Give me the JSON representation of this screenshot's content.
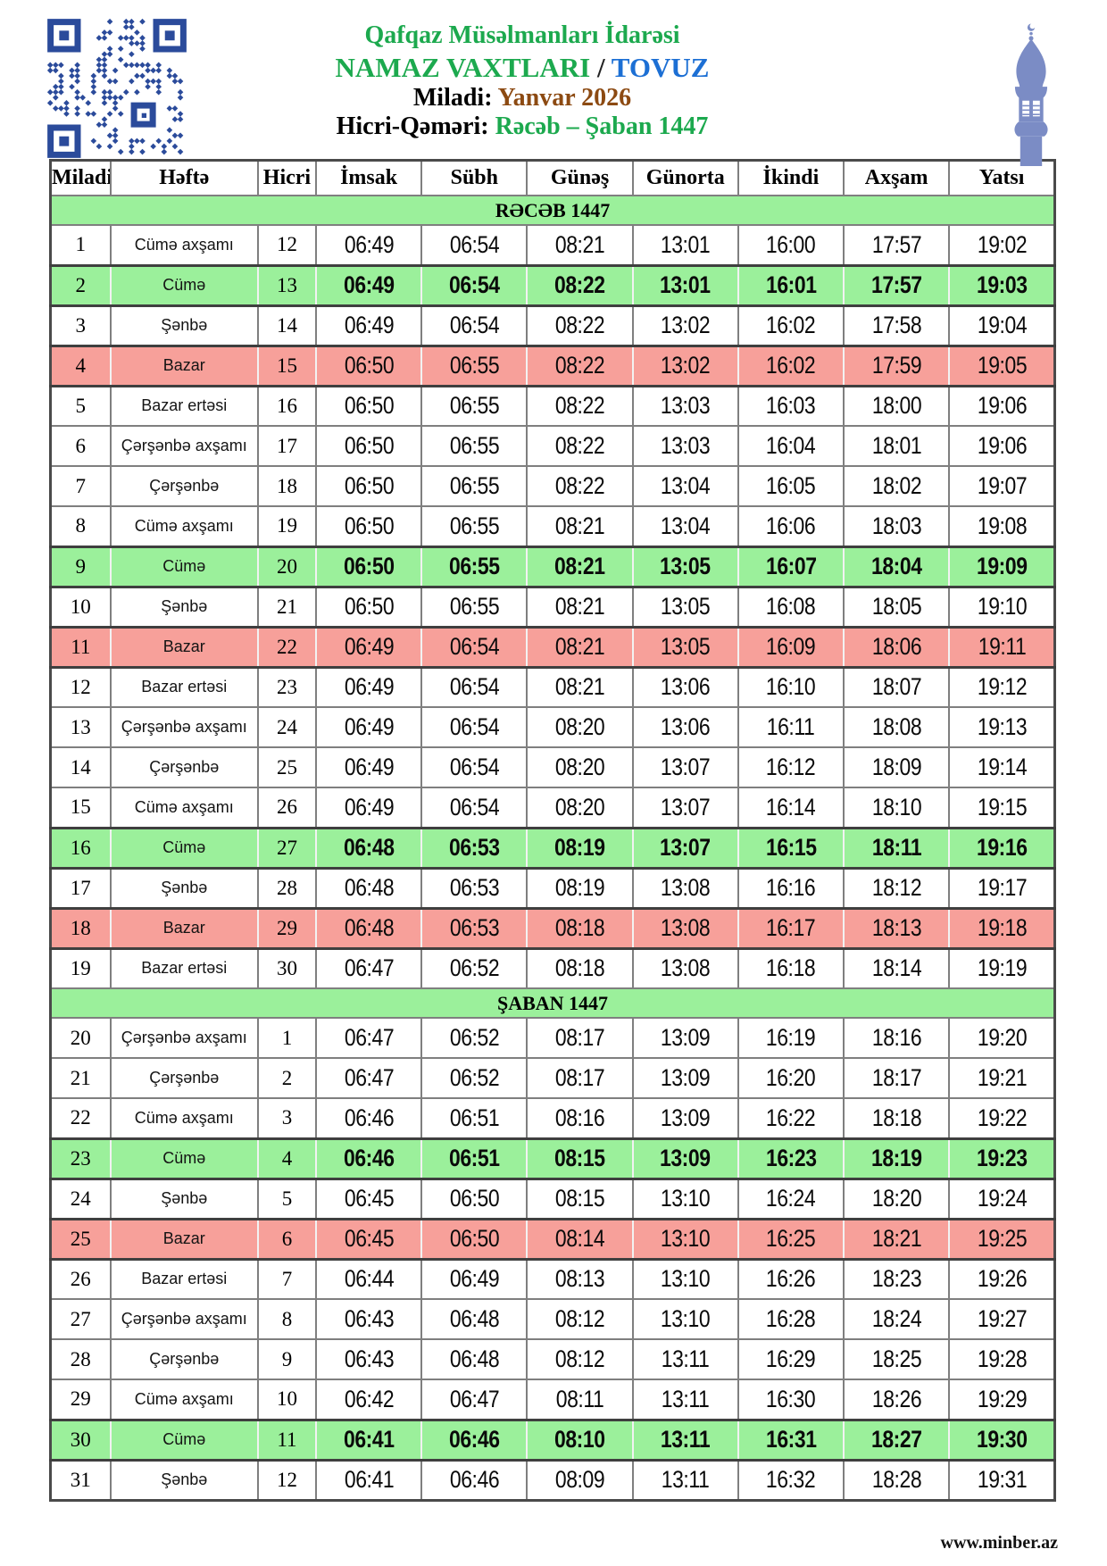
{
  "header": {
    "org": "Qafqaz Müsəlmanları İdarəsi",
    "title": "NAMAZ VAXTLARI",
    "title_sep": " / ",
    "city": "TOVUZ",
    "miladi_label": "Miladi: ",
    "miladi_value": "Yanvar 2026",
    "hicri_label": "Hicri-Qəməri: ",
    "hicri_value": "Rəcəb – Şaban 1447"
  },
  "table": {
    "columns": [
      "Miladi",
      "Həftə",
      "Hicri",
      "İmsak",
      "Sübh",
      "Günəş",
      "Günorta",
      "İkindi",
      "Axşam",
      "Yatsı"
    ],
    "sections": [
      {
        "title": "RƏCƏB 1447",
        "rows": [
          {
            "miladi": "1",
            "hefte": "Cümə axşamı",
            "hicri": "12",
            "times": [
              "06:49",
              "06:54",
              "08:21",
              "13:01",
              "16:00",
              "17:57",
              "19:02"
            ],
            "highlight": "none"
          },
          {
            "miladi": "2",
            "hefte": "Cümə",
            "hicri": "13",
            "times": [
              "06:49",
              "06:54",
              "08:22",
              "13:01",
              "16:01",
              "17:57",
              "19:03"
            ],
            "highlight": "friday"
          },
          {
            "miladi": "3",
            "hefte": "Şənbə",
            "hicri": "14",
            "times": [
              "06:49",
              "06:54",
              "08:22",
              "13:02",
              "16:02",
              "17:58",
              "19:04"
            ],
            "highlight": "none"
          },
          {
            "miladi": "4",
            "hefte": "Bazar",
            "hicri": "15",
            "times": [
              "06:50",
              "06:55",
              "08:22",
              "13:02",
              "16:02",
              "17:59",
              "19:05"
            ],
            "highlight": "sunday"
          },
          {
            "miladi": "5",
            "hefte": "Bazar ertəsi",
            "hicri": "16",
            "times": [
              "06:50",
              "06:55",
              "08:22",
              "13:03",
              "16:03",
              "18:00",
              "19:06"
            ],
            "highlight": "none"
          },
          {
            "miladi": "6",
            "hefte": "Çərşənbə axşamı",
            "hicri": "17",
            "times": [
              "06:50",
              "06:55",
              "08:22",
              "13:03",
              "16:04",
              "18:01",
              "19:06"
            ],
            "highlight": "none"
          },
          {
            "miladi": "7",
            "hefte": "Çərşənbə",
            "hicri": "18",
            "times": [
              "06:50",
              "06:55",
              "08:22",
              "13:04",
              "16:05",
              "18:02",
              "19:07"
            ],
            "highlight": "none"
          },
          {
            "miladi": "8",
            "hefte": "Cümə axşamı",
            "hicri": "19",
            "times": [
              "06:50",
              "06:55",
              "08:21",
              "13:04",
              "16:06",
              "18:03",
              "19:08"
            ],
            "highlight": "none"
          },
          {
            "miladi": "9",
            "hefte": "Cümə",
            "hicri": "20",
            "times": [
              "06:50",
              "06:55",
              "08:21",
              "13:05",
              "16:07",
              "18:04",
              "19:09"
            ],
            "highlight": "friday"
          },
          {
            "miladi": "10",
            "hefte": "Şənbə",
            "hicri": "21",
            "times": [
              "06:50",
              "06:55",
              "08:21",
              "13:05",
              "16:08",
              "18:05",
              "19:10"
            ],
            "highlight": "none"
          },
          {
            "miladi": "11",
            "hefte": "Bazar",
            "hicri": "22",
            "times": [
              "06:49",
              "06:54",
              "08:21",
              "13:05",
              "16:09",
              "18:06",
              "19:11"
            ],
            "highlight": "sunday"
          },
          {
            "miladi": "12",
            "hefte": "Bazar ertəsi",
            "hicri": "23",
            "times": [
              "06:49",
              "06:54",
              "08:21",
              "13:06",
              "16:10",
              "18:07",
              "19:12"
            ],
            "highlight": "none"
          },
          {
            "miladi": "13",
            "hefte": "Çərşənbə axşamı",
            "hicri": "24",
            "times": [
              "06:49",
              "06:54",
              "08:20",
              "13:06",
              "16:11",
              "18:08",
              "19:13"
            ],
            "highlight": "none"
          },
          {
            "miladi": "14",
            "hefte": "Çərşənbə",
            "hicri": "25",
            "times": [
              "06:49",
              "06:54",
              "08:20",
              "13:07",
              "16:12",
              "18:09",
              "19:14"
            ],
            "highlight": "none"
          },
          {
            "miladi": "15",
            "hefte": "Cümə axşamı",
            "hicri": "26",
            "times": [
              "06:49",
              "06:54",
              "08:20",
              "13:07",
              "16:14",
              "18:10",
              "19:15"
            ],
            "highlight": "none"
          },
          {
            "miladi": "16",
            "hefte": "Cümə",
            "hicri": "27",
            "times": [
              "06:48",
              "06:53",
              "08:19",
              "13:07",
              "16:15",
              "18:11",
              "19:16"
            ],
            "highlight": "friday"
          },
          {
            "miladi": "17",
            "hefte": "Şənbə",
            "hicri": "28",
            "times": [
              "06:48",
              "06:53",
              "08:19",
              "13:08",
              "16:16",
              "18:12",
              "19:17"
            ],
            "highlight": "none"
          },
          {
            "miladi": "18",
            "hefte": "Bazar",
            "hicri": "29",
            "times": [
              "06:48",
              "06:53",
              "08:18",
              "13:08",
              "16:17",
              "18:13",
              "19:18"
            ],
            "highlight": "sunday"
          },
          {
            "miladi": "19",
            "hefte": "Bazar ertəsi",
            "hicri": "30",
            "times": [
              "06:47",
              "06:52",
              "08:18",
              "13:08",
              "16:18",
              "18:14",
              "19:19"
            ],
            "highlight": "none"
          }
        ]
      },
      {
        "title": "ŞABAN 1447",
        "rows": [
          {
            "miladi": "20",
            "hefte": "Çərşənbə axşamı",
            "hicri": "1",
            "times": [
              "06:47",
              "06:52",
              "08:17",
              "13:09",
              "16:19",
              "18:16",
              "19:20"
            ],
            "highlight": "none"
          },
          {
            "miladi": "21",
            "hefte": "Çərşənbə",
            "hicri": "2",
            "times": [
              "06:47",
              "06:52",
              "08:17",
              "13:09",
              "16:20",
              "18:17",
              "19:21"
            ],
            "highlight": "none"
          },
          {
            "miladi": "22",
            "hefte": "Cümə axşamı",
            "hicri": "3",
            "times": [
              "06:46",
              "06:51",
              "08:16",
              "13:09",
              "16:22",
              "18:18",
              "19:22"
            ],
            "highlight": "none"
          },
          {
            "miladi": "23",
            "hefte": "Cümə",
            "hicri": "4",
            "times": [
              "06:46",
              "06:51",
              "08:15",
              "13:09",
              "16:23",
              "18:19",
              "19:23"
            ],
            "highlight": "friday"
          },
          {
            "miladi": "24",
            "hefte": "Şənbə",
            "hicri": "5",
            "times": [
              "06:45",
              "06:50",
              "08:15",
              "13:10",
              "16:24",
              "18:20",
              "19:24"
            ],
            "highlight": "none"
          },
          {
            "miladi": "25",
            "hefte": "Bazar",
            "hicri": "6",
            "times": [
              "06:45",
              "06:50",
              "08:14",
              "13:10",
              "16:25",
              "18:21",
              "19:25"
            ],
            "highlight": "sunday"
          },
          {
            "miladi": "26",
            "hefte": "Bazar ertəsi",
            "hicri": "7",
            "times": [
              "06:44",
              "06:49",
              "08:13",
              "13:10",
              "16:26",
              "18:23",
              "19:26"
            ],
            "highlight": "none"
          },
          {
            "miladi": "27",
            "hefte": "Çərşənbə axşamı",
            "hicri": "8",
            "times": [
              "06:43",
              "06:48",
              "08:12",
              "13:10",
              "16:28",
              "18:24",
              "19:27"
            ],
            "highlight": "none"
          },
          {
            "miladi": "28",
            "hefte": "Çərşənbə",
            "hicri": "9",
            "times": [
              "06:43",
              "06:48",
              "08:12",
              "13:11",
              "16:29",
              "18:25",
              "19:28"
            ],
            "highlight": "none"
          },
          {
            "miladi": "29",
            "hefte": "Cümə axşamı",
            "hicri": "10",
            "times": [
              "06:42",
              "06:47",
              "08:11",
              "13:11",
              "16:30",
              "18:26",
              "19:29"
            ],
            "highlight": "none"
          },
          {
            "miladi": "30",
            "hefte": "Cümə",
            "hicri": "11",
            "times": [
              "06:41",
              "06:46",
              "08:10",
              "13:11",
              "16:31",
              "18:27",
              "19:30"
            ],
            "highlight": "friday"
          },
          {
            "miladi": "31",
            "hefte": "Şənbə",
            "hicri": "12",
            "times": [
              "06:41",
              "06:46",
              "08:09",
              "13:11",
              "16:32",
              "18:28",
              "19:31"
            ],
            "highlight": "none"
          }
        ]
      }
    ]
  },
  "footer": {
    "site": "www.minber.az"
  },
  "colors": {
    "accent_green": "#1CA94E",
    "accent_blue": "#1C6FD4",
    "accent_brown": "#8C4A12",
    "friday_row_bg": "#9BF09B",
    "sunday_row_bg": "#F7A09A",
    "section_bg": "#9BF09B",
    "qr_blue": "#2B4B9B",
    "minaret_blue": "#7B8CC5",
    "border_gray": "#7f7f7f"
  }
}
